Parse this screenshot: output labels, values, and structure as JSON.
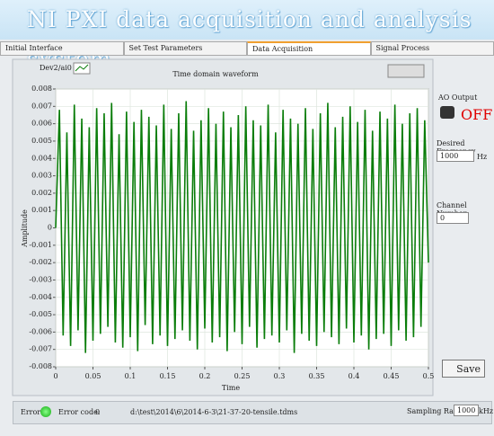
{
  "title": "NI PXI data acquisition and analysis system",
  "tabs": [
    "Initial Interface",
    "Set Test Parameters",
    "Data Acquisition",
    "Signal Process"
  ],
  "chart_data": {
    "type": "line",
    "title": "Time domain waveform",
    "x_label": "Time",
    "y_label": "Amplitude",
    "x": [
      0,
      0.005,
      0.01,
      0.015,
      0.02,
      0.025,
      0.03,
      0.035,
      0.04,
      0.045,
      0.05,
      0.055,
      0.06,
      0.065,
      0.07,
      0.075,
      0.08,
      0.085,
      0.09,
      0.095,
      0.1,
      0.105,
      0.11,
      0.115,
      0.12,
      0.125,
      0.13,
      0.135,
      0.14,
      0.145,
      0.15,
      0.155,
      0.16,
      0.165,
      0.17,
      0.175,
      0.18,
      0.185,
      0.19,
      0.195,
      0.2,
      0.205,
      0.21,
      0.215,
      0.22,
      0.225,
      0.23,
      0.235,
      0.24,
      0.245,
      0.25,
      0.255,
      0.26,
      0.265,
      0.27,
      0.275,
      0.28,
      0.285,
      0.29,
      0.295,
      0.3,
      0.305,
      0.31,
      0.315,
      0.32,
      0.325,
      0.33,
      0.335,
      0.34,
      0.345,
      0.35,
      0.355,
      0.36,
      0.365,
      0.37,
      0.375,
      0.38,
      0.385,
      0.39,
      0.395,
      0.4,
      0.405,
      0.41,
      0.415,
      0.42,
      0.425,
      0.43,
      0.435,
      0.44,
      0.445,
      0.45,
      0.455,
      0.46,
      0.465,
      0.47,
      0.475,
      0.48,
      0.485,
      0.49,
      0.495,
      0.5
    ],
    "series": [
      {
        "name": "Dev2/ai0",
        "color": "#0a7d0a",
        "values": [
          0,
          0.0068,
          -0.0062,
          0.0055,
          -0.0068,
          0.0071,
          -0.0059,
          0.0063,
          -0.0072,
          0.0058,
          -0.0065,
          0.0069,
          -0.0061,
          0.0066,
          -0.0057,
          0.0072,
          -0.0066,
          0.0054,
          -0.0069,
          0.0067,
          -0.0063,
          0.0061,
          -0.0071,
          0.0068,
          -0.0056,
          0.0064,
          -0.0067,
          0.0059,
          -0.0062,
          0.0071,
          -0.0068,
          0.0057,
          -0.0064,
          0.0066,
          -0.0059,
          0.0073,
          -0.0065,
          0.0056,
          -0.007,
          0.0062,
          -0.0058,
          0.0069,
          -0.0066,
          0.006,
          -0.0063,
          0.0067,
          -0.0071,
          0.0058,
          -0.006,
          0.0065,
          -0.0067,
          0.007,
          -0.0057,
          0.0062,
          -0.0069,
          0.0059,
          -0.0064,
          0.0071,
          -0.0062,
          0.0055,
          -0.0066,
          0.0068,
          -0.0059,
          0.0063,
          -0.0072,
          0.006,
          -0.0061,
          0.0069,
          -0.0065,
          0.0057,
          -0.0068,
          0.0066,
          -0.006,
          0.0072,
          -0.0063,
          0.0058,
          -0.0067,
          0.0064,
          -0.0058,
          0.007,
          -0.0066,
          0.0061,
          -0.0062,
          0.0068,
          -0.007,
          0.0056,
          -0.0064,
          0.0067,
          -0.0061,
          0.0063,
          -0.0068,
          0.0071,
          -0.0059,
          0.006,
          -0.0065,
          0.0066,
          -0.0063,
          0.0069,
          -0.0057,
          0.0062,
          -0.002
        ]
      }
    ],
    "xlim": [
      0,
      0.5
    ],
    "xticks": [
      0,
      0.05,
      0.1,
      0.15,
      0.2,
      0.25,
      0.3,
      0.35,
      0.4,
      0.45,
      0.5
    ],
    "ylim": [
      -0.008,
      0.008
    ],
    "yticks": [
      -0.008,
      -0.007,
      -0.006,
      -0.005,
      -0.004,
      -0.003,
      -0.002,
      -0.001,
      0,
      0.001,
      0.002,
      0.003,
      0.004,
      0.005,
      0.006,
      0.007,
      0.008
    ],
    "grid": true
  },
  "controls": {
    "ao_output": {
      "label": "AO Output",
      "state": "OFF"
    },
    "desired_frequency": {
      "label": "Desired Frequency",
      "value": 1000,
      "unit": "Hz"
    },
    "channel_number": {
      "label": "Channel Number",
      "value": 0
    },
    "save": "Save"
  },
  "status": {
    "error_label": "Error",
    "error_code_label": "Error code:",
    "error_code": 0,
    "file_path": "d:\\test\\2014\\6\\2014-6-3\\21-37-20-tensile.tdms",
    "sampling_rate_label": "Sampling Rate",
    "sampling_rate": 1000,
    "sampling_rate_unit": "kHz"
  }
}
